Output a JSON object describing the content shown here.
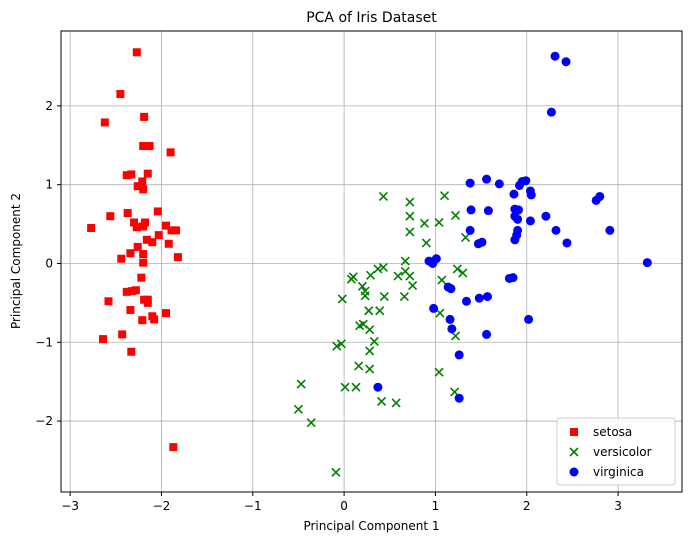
{
  "chart_data": {
    "type": "scatter",
    "title": "PCA of Iris Dataset",
    "xlabel": "Principal Component 1",
    "ylabel": "Principal Component 2",
    "xlim": [
      -3.1,
      3.7
    ],
    "ylim": [
      -2.9,
      2.95
    ],
    "xticks": [
      -3,
      -2,
      -1,
      0,
      1,
      2,
      3
    ],
    "yticks": [
      -2,
      -1,
      0,
      1,
      2
    ],
    "xtick_labels": [
      "−3",
      "−2",
      "−1",
      "0",
      "1",
      "2",
      "3"
    ],
    "ytick_labels": [
      "−2",
      "−1",
      "0",
      "1",
      "2"
    ],
    "grid": true,
    "legend_position": "lower-right",
    "series": [
      {
        "name": "setosa",
        "marker": "square",
        "color": "#ff0000",
        "points": [
          [
            -2.27,
            2.68
          ],
          [
            -2.45,
            2.15
          ],
          [
            -2.62,
            1.79
          ],
          [
            -2.19,
            1.86
          ],
          [
            -2.13,
            1.49
          ],
          [
            -2.2,
            1.49
          ],
          [
            -1.9,
            1.41
          ],
          [
            -2.38,
            1.12
          ],
          [
            -2.33,
            1.13
          ],
          [
            -2.15,
            1.14
          ],
          [
            -2.21,
            1.04
          ],
          [
            -2.26,
            0.98
          ],
          [
            -2.2,
            0.94
          ],
          [
            -2.04,
            0.66
          ],
          [
            -2.37,
            0.64
          ],
          [
            -2.56,
            0.6
          ],
          [
            -2.3,
            0.52
          ],
          [
            -2.18,
            0.52
          ],
          [
            -2.2,
            0.47
          ],
          [
            -2.27,
            0.46
          ],
          [
            -1.95,
            0.48
          ],
          [
            -2.77,
            0.45
          ],
          [
            -1.89,
            0.42
          ],
          [
            -1.84,
            0.42
          ],
          [
            -2.03,
            0.36
          ],
          [
            -2.16,
            0.3
          ],
          [
            -2.1,
            0.27
          ],
          [
            -1.92,
            0.25
          ],
          [
            -2.26,
            0.21
          ],
          [
            -2.34,
            0.13
          ],
          [
            -2.2,
            0.12
          ],
          [
            -2.44,
            0.06
          ],
          [
            -1.82,
            0.08
          ],
          [
            -2.2,
            0.01
          ],
          [
            -2.22,
            -0.18
          ],
          [
            -2.32,
            -0.35
          ],
          [
            -2.38,
            -0.36
          ],
          [
            -2.28,
            -0.34
          ],
          [
            -2.19,
            -0.46
          ],
          [
            -2.15,
            -0.46
          ],
          [
            -2.58,
            -0.48
          ],
          [
            -2.15,
            -0.5
          ],
          [
            -2.34,
            -0.59
          ],
          [
            -1.95,
            -0.63
          ],
          [
            -2.21,
            -0.72
          ],
          [
            -2.1,
            -0.67
          ],
          [
            -2.08,
            -0.71
          ],
          [
            -2.43,
            -0.9
          ],
          [
            -2.64,
            -0.96
          ],
          [
            -2.33,
            -1.12
          ],
          [
            -1.87,
            -2.33
          ]
        ]
      },
      {
        "name": "versicolor",
        "marker": "x",
        "color": "#008000",
        "points": [
          [
            0.43,
            0.85
          ],
          [
            1.1,
            0.86
          ],
          [
            0.72,
            0.78
          ],
          [
            0.72,
            0.6
          ],
          [
            0.88,
            0.51
          ],
          [
            1.22,
            0.61
          ],
          [
            1.04,
            0.52
          ],
          [
            0.72,
            0.4
          ],
          [
            0.9,
            0.26
          ],
          [
            1.33,
            0.33
          ],
          [
            0.43,
            -0.05
          ],
          [
            0.37,
            -0.07
          ],
          [
            0.67,
            -0.1
          ],
          [
            0.59,
            -0.16
          ],
          [
            0.72,
            -0.16
          ],
          [
            0.67,
            0.03
          ],
          [
            0.29,
            -0.15
          ],
          [
            0.1,
            -0.17
          ],
          [
            0.08,
            -0.2
          ],
          [
            1.24,
            -0.07
          ],
          [
            1.07,
            -0.21
          ],
          [
            0.2,
            -0.29
          ],
          [
            0.23,
            -0.35
          ],
          [
            0.23,
            -0.41
          ],
          [
            0.44,
            -0.42
          ],
          [
            0.66,
            -0.42
          ],
          [
            0.75,
            -0.28
          ],
          [
            1.3,
            -0.12
          ],
          [
            -0.02,
            -0.45
          ],
          [
            0.39,
            -0.6
          ],
          [
            0.27,
            -0.6
          ],
          [
            0.17,
            -0.79
          ],
          [
            0.21,
            -0.77
          ],
          [
            0.28,
            -0.84
          ],
          [
            1.05,
            -0.63
          ],
          [
            0.33,
            -0.99
          ],
          [
            1.22,
            -0.92
          ],
          [
            -0.03,
            -1.02
          ],
          [
            -0.08,
            -1.05
          ],
          [
            0.28,
            -1.11
          ],
          [
            0.16,
            -1.3
          ],
          [
            0.28,
            -1.34
          ],
          [
            1.04,
            -1.38
          ],
          [
            -0.47,
            -1.53
          ],
          [
            0.01,
            -1.57
          ],
          [
            0.13,
            -1.57
          ],
          [
            1.21,
            -1.63
          ],
          [
            -0.5,
            -1.85
          ],
          [
            0.41,
            -1.75
          ],
          [
            0.57,
            -1.77
          ],
          [
            -0.36,
            -2.02
          ],
          [
            -0.09,
            -2.65
          ]
        ]
      },
      {
        "name": "virginica",
        "marker": "circle",
        "color": "#0000ff",
        "points": [
          [
            2.31,
            2.63
          ],
          [
            2.43,
            2.56
          ],
          [
            2.27,
            1.92
          ],
          [
            1.38,
            1.02
          ],
          [
            1.56,
            1.07
          ],
          [
            1.7,
            1.01
          ],
          [
            1.95,
            1.04
          ],
          [
            1.99,
            1.05
          ],
          [
            1.92,
            0.99
          ],
          [
            2.04,
            0.92
          ],
          [
            2.05,
            0.87
          ],
          [
            1.86,
            0.88
          ],
          [
            2.8,
            0.85
          ],
          [
            2.76,
            0.8
          ],
          [
            1.87,
            0.69
          ],
          [
            1.91,
            0.68
          ],
          [
            1.58,
            0.67
          ],
          [
            1.39,
            0.68
          ],
          [
            1.87,
            0.6
          ],
          [
            1.9,
            0.56
          ],
          [
            2.21,
            0.6
          ],
          [
            2.04,
            0.54
          ],
          [
            2.32,
            0.42
          ],
          [
            2.91,
            0.42
          ],
          [
            1.38,
            0.42
          ],
          [
            1.9,
            0.42
          ],
          [
            1.89,
            0.36
          ],
          [
            1.87,
            0.3
          ],
          [
            1.51,
            0.27
          ],
          [
            1.47,
            0.25
          ],
          [
            2.44,
            0.26
          ],
          [
            1.01,
            0.06
          ],
          [
            0.93,
            0.03
          ],
          [
            0.97,
            0.0
          ],
          [
            1.14,
            -0.3
          ],
          [
            1.17,
            -0.32
          ],
          [
            1.81,
            -0.19
          ],
          [
            1.85,
            -0.18
          ],
          [
            1.57,
            -0.42
          ],
          [
            1.34,
            -0.48
          ],
          [
            1.48,
            -0.44
          ],
          [
            0.98,
            -0.57
          ],
          [
            1.16,
            -0.71
          ],
          [
            2.02,
            -0.71
          ],
          [
            1.18,
            -0.83
          ],
          [
            1.56,
            -0.9
          ],
          [
            1.26,
            -1.16
          ],
          [
            0.37,
            -1.57
          ],
          [
            1.26,
            -1.71
          ],
          [
            3.32,
            0.01
          ]
        ]
      }
    ]
  }
}
